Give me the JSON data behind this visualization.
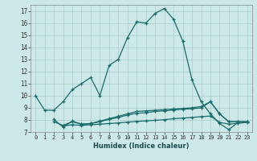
{
  "xlabel": "Humidex (Indice chaleur)",
  "background_color": "#cce8e8",
  "grid_color": "#aacccc",
  "line_color": "#1a6b6b",
  "xlim": [
    -0.5,
    23.5
  ],
  "ylim": [
    7,
    17.5
  ],
  "yticks": [
    7,
    8,
    9,
    10,
    11,
    12,
    13,
    14,
    15,
    16,
    17
  ],
  "xticks": [
    0,
    1,
    2,
    3,
    4,
    5,
    6,
    7,
    8,
    9,
    10,
    11,
    12,
    13,
    14,
    15,
    16,
    17,
    18,
    19,
    20,
    21,
    22,
    23
  ],
  "lines": [
    {
      "x": [
        0,
        1,
        2,
        3,
        4,
        5,
        6,
        7,
        8,
        9,
        10,
        11,
        12,
        13,
        14,
        15,
        16,
        17,
        18,
        19,
        20,
        21,
        22
      ],
      "y": [
        10.0,
        8.8,
        8.8,
        9.5,
        10.5,
        11.0,
        11.5,
        10.0,
        12.5,
        13.0,
        14.8,
        16.1,
        16.0,
        16.8,
        17.2,
        16.3,
        14.5,
        11.3,
        9.5,
        8.5,
        7.7,
        7.2,
        7.8
      ]
    },
    {
      "x": [
        2,
        3,
        4,
        5,
        6,
        7,
        8,
        9,
        10,
        11,
        12,
        13,
        14,
        15,
        16,
        17,
        18,
        19,
        20,
        21,
        22,
        23
      ],
      "y": [
        7.85,
        7.55,
        7.85,
        7.65,
        7.7,
        7.85,
        8.05,
        8.2,
        8.4,
        8.55,
        8.6,
        8.7,
        8.75,
        8.82,
        8.88,
        8.92,
        9.0,
        9.5,
        8.5,
        7.85,
        7.85,
        7.85
      ]
    },
    {
      "x": [
        2,
        3,
        4,
        5,
        6,
        7,
        8,
        9,
        10,
        11,
        12,
        13,
        14,
        15,
        16,
        17,
        18,
        19,
        20,
        21,
        22,
        23
      ],
      "y": [
        8.05,
        7.4,
        7.9,
        7.65,
        7.7,
        7.9,
        8.1,
        8.3,
        8.5,
        8.7,
        8.75,
        8.8,
        8.85,
        8.9,
        8.95,
        9.0,
        9.1,
        9.5,
        8.5,
        7.85,
        7.85,
        7.85
      ]
    },
    {
      "x": [
        3,
        4,
        5,
        6,
        7,
        8,
        9,
        10,
        11,
        12,
        13,
        14,
        15,
        16,
        17,
        18,
        19,
        20,
        21,
        22,
        23
      ],
      "y": [
        7.5,
        7.6,
        7.55,
        7.6,
        7.65,
        7.7,
        7.75,
        7.82,
        7.88,
        7.92,
        7.97,
        8.02,
        8.1,
        8.15,
        8.2,
        8.27,
        8.32,
        7.8,
        7.65,
        7.72,
        7.8
      ]
    }
  ]
}
